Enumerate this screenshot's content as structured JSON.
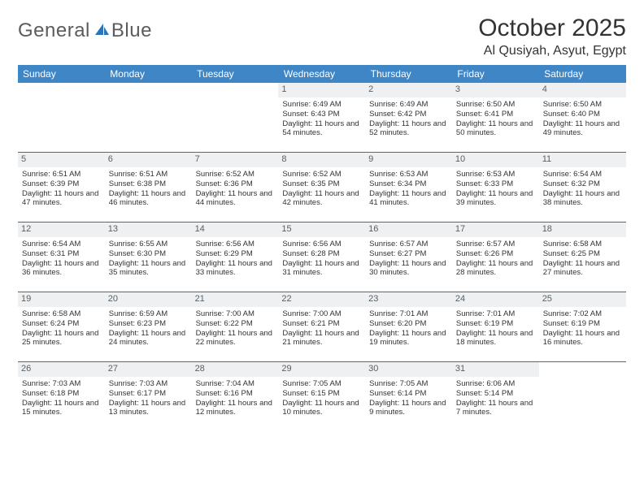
{
  "logo": {
    "text1": "General",
    "text2": "Blue"
  },
  "title": "October 2025",
  "location": "Al Qusiyah, Asyut, Egypt",
  "colors": {
    "header_bg": "#3f86c7",
    "header_text": "#ffffff",
    "daynum_bg": "#eef0f1",
    "daynum_text": "#5a5f63",
    "rule": "#3a6e9e",
    "body_text": "#333333",
    "logo_gray": "#5c5c5c",
    "logo_blue": "#2d73b8"
  },
  "day_headers": [
    "Sunday",
    "Monday",
    "Tuesday",
    "Wednesday",
    "Thursday",
    "Friday",
    "Saturday"
  ],
  "weeks": [
    [
      {
        "n": "",
        "empty": true
      },
      {
        "n": "",
        "empty": true
      },
      {
        "n": "",
        "empty": true
      },
      {
        "n": "1",
        "sr": "Sunrise: 6:49 AM",
        "ss": "Sunset: 6:43 PM",
        "dl": "Daylight: 11 hours and 54 minutes."
      },
      {
        "n": "2",
        "sr": "Sunrise: 6:49 AM",
        "ss": "Sunset: 6:42 PM",
        "dl": "Daylight: 11 hours and 52 minutes."
      },
      {
        "n": "3",
        "sr": "Sunrise: 6:50 AM",
        "ss": "Sunset: 6:41 PM",
        "dl": "Daylight: 11 hours and 50 minutes."
      },
      {
        "n": "4",
        "sr": "Sunrise: 6:50 AM",
        "ss": "Sunset: 6:40 PM",
        "dl": "Daylight: 11 hours and 49 minutes."
      }
    ],
    [
      {
        "n": "5",
        "sr": "Sunrise: 6:51 AM",
        "ss": "Sunset: 6:39 PM",
        "dl": "Daylight: 11 hours and 47 minutes."
      },
      {
        "n": "6",
        "sr": "Sunrise: 6:51 AM",
        "ss": "Sunset: 6:38 PM",
        "dl": "Daylight: 11 hours and 46 minutes."
      },
      {
        "n": "7",
        "sr": "Sunrise: 6:52 AM",
        "ss": "Sunset: 6:36 PM",
        "dl": "Daylight: 11 hours and 44 minutes."
      },
      {
        "n": "8",
        "sr": "Sunrise: 6:52 AM",
        "ss": "Sunset: 6:35 PM",
        "dl": "Daylight: 11 hours and 42 minutes."
      },
      {
        "n": "9",
        "sr": "Sunrise: 6:53 AM",
        "ss": "Sunset: 6:34 PM",
        "dl": "Daylight: 11 hours and 41 minutes."
      },
      {
        "n": "10",
        "sr": "Sunrise: 6:53 AM",
        "ss": "Sunset: 6:33 PM",
        "dl": "Daylight: 11 hours and 39 minutes."
      },
      {
        "n": "11",
        "sr": "Sunrise: 6:54 AM",
        "ss": "Sunset: 6:32 PM",
        "dl": "Daylight: 11 hours and 38 minutes."
      }
    ],
    [
      {
        "n": "12",
        "sr": "Sunrise: 6:54 AM",
        "ss": "Sunset: 6:31 PM",
        "dl": "Daylight: 11 hours and 36 minutes."
      },
      {
        "n": "13",
        "sr": "Sunrise: 6:55 AM",
        "ss": "Sunset: 6:30 PM",
        "dl": "Daylight: 11 hours and 35 minutes."
      },
      {
        "n": "14",
        "sr": "Sunrise: 6:56 AM",
        "ss": "Sunset: 6:29 PM",
        "dl": "Daylight: 11 hours and 33 minutes."
      },
      {
        "n": "15",
        "sr": "Sunrise: 6:56 AM",
        "ss": "Sunset: 6:28 PM",
        "dl": "Daylight: 11 hours and 31 minutes."
      },
      {
        "n": "16",
        "sr": "Sunrise: 6:57 AM",
        "ss": "Sunset: 6:27 PM",
        "dl": "Daylight: 11 hours and 30 minutes."
      },
      {
        "n": "17",
        "sr": "Sunrise: 6:57 AM",
        "ss": "Sunset: 6:26 PM",
        "dl": "Daylight: 11 hours and 28 minutes."
      },
      {
        "n": "18",
        "sr": "Sunrise: 6:58 AM",
        "ss": "Sunset: 6:25 PM",
        "dl": "Daylight: 11 hours and 27 minutes."
      }
    ],
    [
      {
        "n": "19",
        "sr": "Sunrise: 6:58 AM",
        "ss": "Sunset: 6:24 PM",
        "dl": "Daylight: 11 hours and 25 minutes."
      },
      {
        "n": "20",
        "sr": "Sunrise: 6:59 AM",
        "ss": "Sunset: 6:23 PM",
        "dl": "Daylight: 11 hours and 24 minutes."
      },
      {
        "n": "21",
        "sr": "Sunrise: 7:00 AM",
        "ss": "Sunset: 6:22 PM",
        "dl": "Daylight: 11 hours and 22 minutes."
      },
      {
        "n": "22",
        "sr": "Sunrise: 7:00 AM",
        "ss": "Sunset: 6:21 PM",
        "dl": "Daylight: 11 hours and 21 minutes."
      },
      {
        "n": "23",
        "sr": "Sunrise: 7:01 AM",
        "ss": "Sunset: 6:20 PM",
        "dl": "Daylight: 11 hours and 19 minutes."
      },
      {
        "n": "24",
        "sr": "Sunrise: 7:01 AM",
        "ss": "Sunset: 6:19 PM",
        "dl": "Daylight: 11 hours and 18 minutes."
      },
      {
        "n": "25",
        "sr": "Sunrise: 7:02 AM",
        "ss": "Sunset: 6:19 PM",
        "dl": "Daylight: 11 hours and 16 minutes."
      }
    ],
    [
      {
        "n": "26",
        "sr": "Sunrise: 7:03 AM",
        "ss": "Sunset: 6:18 PM",
        "dl": "Daylight: 11 hours and 15 minutes."
      },
      {
        "n": "27",
        "sr": "Sunrise: 7:03 AM",
        "ss": "Sunset: 6:17 PM",
        "dl": "Daylight: 11 hours and 13 minutes."
      },
      {
        "n": "28",
        "sr": "Sunrise: 7:04 AM",
        "ss": "Sunset: 6:16 PM",
        "dl": "Daylight: 11 hours and 12 minutes."
      },
      {
        "n": "29",
        "sr": "Sunrise: 7:05 AM",
        "ss": "Sunset: 6:15 PM",
        "dl": "Daylight: 11 hours and 10 minutes."
      },
      {
        "n": "30",
        "sr": "Sunrise: 7:05 AM",
        "ss": "Sunset: 6:14 PM",
        "dl": "Daylight: 11 hours and 9 minutes."
      },
      {
        "n": "31",
        "sr": "Sunrise: 6:06 AM",
        "ss": "Sunset: 5:14 PM",
        "dl": "Daylight: 11 hours and 7 minutes."
      },
      {
        "n": "",
        "empty": true
      }
    ]
  ]
}
